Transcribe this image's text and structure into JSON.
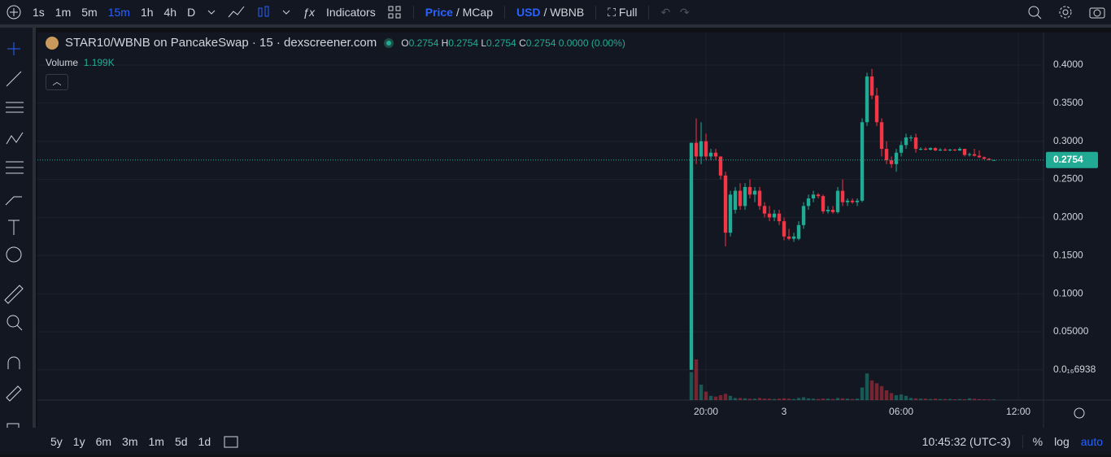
{
  "toolbar": {
    "intervals": [
      "1s",
      "1m",
      "5m",
      "15m",
      "1h",
      "4h",
      "D"
    ],
    "indicators": "Indicators",
    "price": "Price",
    "mcap": "/ MCap",
    "usd": "USD",
    "wbnb": "/ WBNB",
    "full": "Full"
  },
  "legend": {
    "title": "STAR10/WBNB on PancakeSwap · 15 · dexscreener.com",
    "o": "O",
    "h": "H",
    "l": "L",
    "c": "C",
    "change": "0.0000 (0.00%)",
    "volume": "Volume",
    "volume_value": "1.199K"
  },
  "bottom": {
    "ranges": [
      "5y",
      "1y",
      "6m",
      "3m",
      "1m",
      "5d",
      "1d"
    ],
    "time": "10:45:32 (UTC-3)",
    "percent": "%",
    "log": "log",
    "auto": "auto"
  },
  "chart_data": {
    "type": "candlestick",
    "up_color": "#22ab94",
    "down_color": "#f23645",
    "x": [
      19.25,
      19.5,
      19.75,
      20,
      20.25,
      20.5,
      20.75,
      21,
      21.25,
      21.5,
      21.75,
      22,
      22.25,
      22.5,
      22.75,
      23,
      23.25,
      23.5,
      23.75,
      24,
      24.25,
      24.5,
      24.75,
      25,
      25.25,
      25.5,
      25.75,
      26,
      26.25,
      26.5,
      26.75,
      27,
      27.25,
      27.5,
      27.75,
      28,
      28.25,
      28.5,
      28.75,
      29,
      29.25,
      29.5,
      29.75,
      30,
      30.25,
      30.5,
      30.75,
      31,
      31.25,
      31.5,
      31.75,
      32,
      32.25,
      32.5,
      32.75,
      33,
      33.25,
      33.5,
      33.75,
      34,
      34.25,
      34.5,
      34.75
    ],
    "open": [
      0,
      0.298,
      0.28,
      0.3,
      0.28,
      0.285,
      0.28,
      0.255,
      0.18,
      0.21,
      0.235,
      0.215,
      0.24,
      0.23,
      0.235,
      0.215,
      0.205,
      0.2,
      0.205,
      0.195,
      0.175,
      0.172,
      0.172,
      0.19,
      0.215,
      0.225,
      0.23,
      0.228,
      0.208,
      0.21,
      0.207,
      0.235,
      0.22,
      0.222,
      0.22,
      0.222,
      0.325,
      0.385,
      0.36,
      0.325,
      0.29,
      0.275,
      0.27,
      0.285,
      0.295,
      0.305,
      0.305,
      0.29,
      0.29,
      0.289,
      0.291,
      0.288,
      0.289,
      0.288,
      0.289,
      0.288,
      0.29,
      0.282,
      0.283,
      0.281,
      0.279,
      0.277,
      0.2754
    ],
    "high": [
      0.298,
      0.33,
      0.325,
      0.31,
      0.29,
      0.29,
      0.28,
      0.26,
      0.235,
      0.24,
      0.245,
      0.245,
      0.25,
      0.24,
      0.24,
      0.22,
      0.215,
      0.21,
      0.21,
      0.2,
      0.185,
      0.18,
      0.195,
      0.22,
      0.23,
      0.235,
      0.232,
      0.23,
      0.215,
      0.215,
      0.24,
      0.25,
      0.225,
      0.225,
      0.225,
      0.33,
      0.39,
      0.395,
      0.37,
      0.33,
      0.3,
      0.28,
      0.29,
      0.3,
      0.31,
      0.308,
      0.31,
      0.292,
      0.292,
      0.292,
      0.292,
      0.291,
      0.291,
      0.29,
      0.29,
      0.292,
      0.29,
      0.285,
      0.29,
      0.288,
      0.28,
      0.278,
      0.2754
    ],
    "low": [
      0,
      0.27,
      0.27,
      0.275,
      0.275,
      0.275,
      0.25,
      0.162,
      0.175,
      0.205,
      0.21,
      0.21,
      0.225,
      0.22,
      0.21,
      0.2,
      0.195,
      0.195,
      0.19,
      0.17,
      0.17,
      0.168,
      0.17,
      0.185,
      0.21,
      0.22,
      0.225,
      0.205,
      0.205,
      0.205,
      0.205,
      0.215,
      0.215,
      0.218,
      0.215,
      0.22,
      0.32,
      0.355,
      0.32,
      0.28,
      0.27,
      0.265,
      0.26,
      0.28,
      0.29,
      0.3,
      0.285,
      0.288,
      0.288,
      0.288,
      0.287,
      0.287,
      0.287,
      0.287,
      0.287,
      0.287,
      0.28,
      0.28,
      0.28,
      0.278,
      0.276,
      0.275,
      0.2754
    ],
    "close": [
      0.298,
      0.28,
      0.3,
      0.28,
      0.285,
      0.28,
      0.255,
      0.18,
      0.23,
      0.235,
      0.215,
      0.24,
      0.23,
      0.235,
      0.215,
      0.205,
      0.2,
      0.205,
      0.195,
      0.175,
      0.172,
      0.175,
      0.19,
      0.215,
      0.225,
      0.23,
      0.228,
      0.208,
      0.21,
      0.207,
      0.235,
      0.22,
      0.222,
      0.22,
      0.222,
      0.325,
      0.385,
      0.36,
      0.325,
      0.29,
      0.275,
      0.27,
      0.285,
      0.295,
      0.305,
      0.305,
      0.29,
      0.29,
      0.289,
      0.291,
      0.288,
      0.289,
      0.288,
      0.289,
      0.288,
      0.29,
      0.282,
      0.283,
      0.281,
      0.279,
      0.277,
      0.2754,
      0.2754
    ],
    "volume": [
      40000,
      58000,
      22000,
      12000,
      6000,
      5000,
      7000,
      9000,
      6000,
      3000,
      3000,
      2500,
      2000,
      2000,
      3000,
      2000,
      2000,
      1500,
      2000,
      2500,
      2000,
      1500,
      3000,
      4000,
      2500,
      2000,
      1500,
      2000,
      2000,
      1500,
      3000,
      2500,
      2000,
      1500,
      2000,
      18000,
      38000,
      28000,
      24000,
      20000,
      14000,
      10000,
      7000,
      8000,
      6000,
      3000,
      2500,
      2000,
      2000,
      1500,
      2000,
      1500,
      1500,
      1500,
      1200,
      1500,
      1200,
      2500,
      2000,
      1500,
      1200,
      1000,
      1199
    ],
    "xlim": [
      -14.25,
      37.29
    ],
    "xticks": [
      {
        "value": 20,
        "label": "20:00"
      },
      {
        "value": 24,
        "label": "3"
      },
      {
        "value": 30,
        "label": "06:00"
      },
      {
        "value": 36,
        "label": "12:00"
      }
    ],
    "ylim": [
      -0.0397,
      0.4427
    ],
    "yticks": [
      {
        "value": 0.4,
        "label": "0.4000"
      },
      {
        "value": 0.35,
        "label": "0.3500"
      },
      {
        "value": 0.3,
        "label": "0.3000"
      },
      {
        "value": 0.25,
        "label": "0.2500"
      },
      {
        "value": 0.2,
        "label": "0.2000"
      },
      {
        "value": 0.15,
        "label": "0.1500"
      },
      {
        "value": 0.1,
        "label": "0.1000"
      },
      {
        "value": 0.05,
        "label": "0.05000"
      },
      {
        "value": 6.938e-17,
        "label": "0.0₁₆6938"
      }
    ],
    "grid": true
  }
}
